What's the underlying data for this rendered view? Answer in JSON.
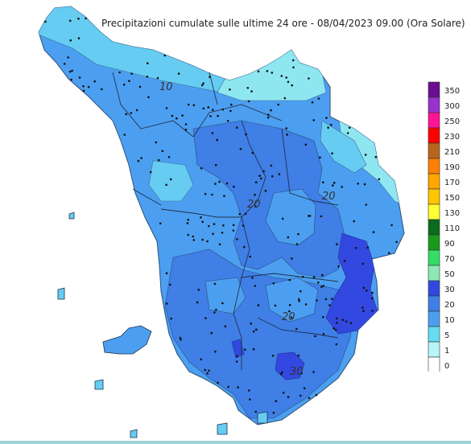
{
  "title": "Precipitazioni cumulate sulle ultime 24 ore - 08/04/2023 09.00 (Ora Solare)",
  "contour_labels": [
    "10",
    "20",
    "20",
    "20",
    "30"
  ],
  "legend": {
    "classes": [
      {
        "label": "350",
        "color": "#6a0d91"
      },
      {
        "label": "300",
        "color": "#9932cc"
      },
      {
        "label": "250",
        "color": "#ff1493"
      },
      {
        "label": "230",
        "color": "#ff0000"
      },
      {
        "label": "210",
        "color": "#b8651e"
      },
      {
        "label": "190",
        "color": "#ff7f00"
      },
      {
        "label": "170",
        "color": "#ffa500"
      },
      {
        "label": "150",
        "color": "#ffc600"
      },
      {
        "label": "130",
        "color": "#ffff33"
      },
      {
        "label": "110",
        "color": "#0b6b1e"
      },
      {
        "label": "90",
        "color": "#1a9a1a"
      },
      {
        "label": "70",
        "color": "#33dd66"
      },
      {
        "label": "50",
        "color": "#8ee8b5"
      },
      {
        "label": "30",
        "color": "#3348e0"
      },
      {
        "label": "20",
        "color": "#3f7fe6"
      },
      {
        "label": "10",
        "color": "#4c9ff0"
      },
      {
        "label": "5",
        "color": "#66ddee"
      },
      {
        "label": "1",
        "color": "#b8f4f8"
      },
      {
        "label": "0",
        "color": "#ffffff"
      }
    ]
  }
}
